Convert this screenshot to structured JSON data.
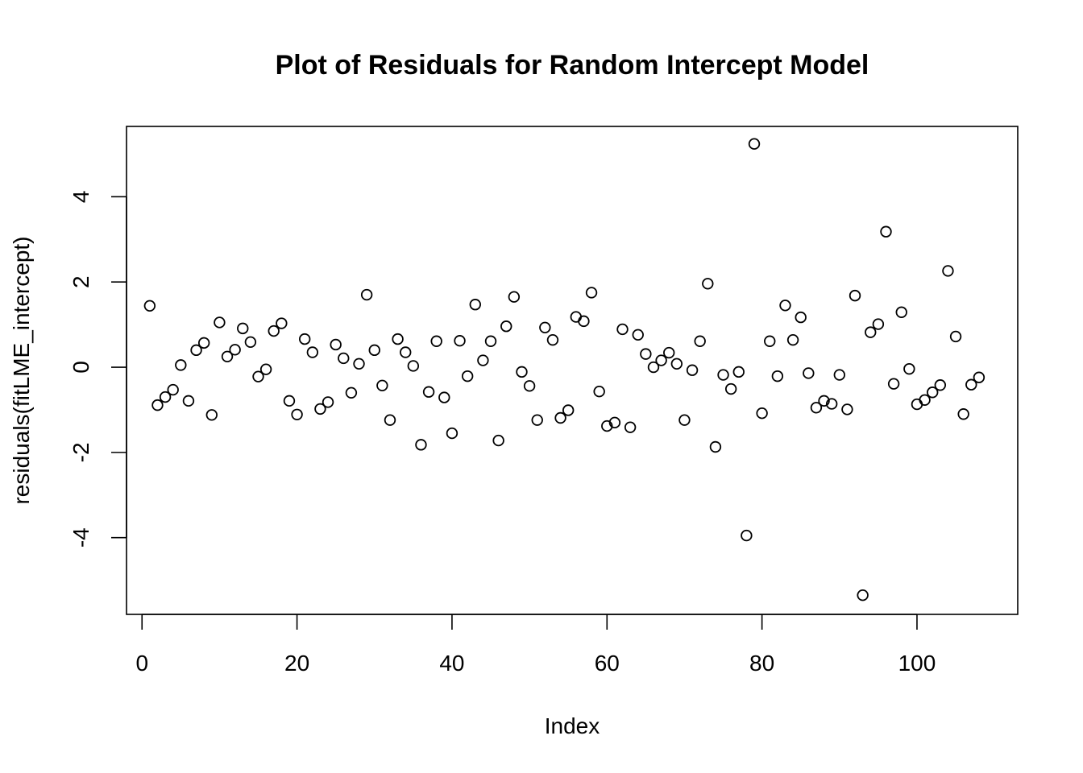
{
  "chart_data": {
    "type": "scatter",
    "title": "Plot of Residuals for Random Intercept Model",
    "xlabel": "Index",
    "ylabel": "residuals(fitLME_intercept)",
    "xlim": [
      -2,
      113
    ],
    "ylim": [
      -5.8,
      5.65
    ],
    "xticks": [
      0,
      20,
      40,
      60,
      80,
      100
    ],
    "yticks": [
      -4,
      -2,
      0,
      2,
      4
    ],
    "grid": false,
    "legend": "none",
    "marker": "open-circle",
    "color": "#000000",
    "x": [
      1,
      2,
      3,
      4,
      5,
      6,
      7,
      8,
      9,
      10,
      11,
      12,
      13,
      14,
      15,
      16,
      17,
      18,
      19,
      20,
      21,
      22,
      23,
      24,
      25,
      26,
      27,
      28,
      29,
      30,
      31,
      32,
      33,
      34,
      35,
      36,
      37,
      38,
      39,
      40,
      41,
      42,
      43,
      44,
      45,
      46,
      47,
      48,
      49,
      50,
      51,
      52,
      53,
      54,
      55,
      56,
      57,
      58,
      59,
      60,
      61,
      62,
      63,
      64,
      65,
      66,
      67,
      68,
      69,
      70,
      71,
      72,
      73,
      74,
      75,
      76,
      77,
      78,
      79,
      80,
      81,
      82,
      83,
      84,
      85,
      86,
      87,
      88,
      89,
      90,
      91,
      92,
      93,
      94,
      95,
      96,
      97,
      98,
      99,
      100,
      101,
      102,
      103,
      104,
      105,
      106,
      107,
      108
    ],
    "y": [
      1.44,
      -0.89,
      -0.7,
      -0.53,
      0.05,
      -0.79,
      0.4,
      0.57,
      -1.12,
      1.05,
      0.25,
      0.41,
      0.91,
      0.59,
      -0.22,
      -0.05,
      0.85,
      1.03,
      -0.79,
      -1.11,
      0.66,
      0.35,
      -0.98,
      -0.82,
      0.53,
      0.21,
      -0.6,
      0.08,
      1.7,
      0.4,
      -0.43,
      -1.24,
      0.66,
      0.35,
      0.03,
      -1.82,
      -0.58,
      0.61,
      -0.71,
      -1.55,
      0.62,
      -0.21,
      1.47,
      0.16,
      0.61,
      -1.72,
      0.96,
      1.65,
      -0.11,
      -0.44,
      -1.24,
      0.93,
      0.64,
      -1.19,
      -1.01,
      1.18,
      1.08,
      1.75,
      -0.57,
      -1.38,
      -1.3,
      0.89,
      -1.41,
      0.76,
      0.31,
      0.0,
      0.16,
      0.34,
      0.08,
      -1.24,
      -0.07,
      0.61,
      1.96,
      -1.87,
      -0.18,
      -0.51,
      -0.11,
      -3.95,
      5.24,
      -1.08,
      0.61,
      -0.21,
      1.45,
      0.64,
      1.17,
      -0.14,
      -0.95,
      -0.79,
      -0.86,
      -0.18,
      -0.99,
      1.68,
      -5.35,
      0.82,
      1.01,
      3.18,
      -0.39,
      1.29,
      -0.04,
      -0.87,
      -0.77,
      -0.59,
      -0.42,
      2.26,
      0.72,
      -1.1,
      -0.41,
      -0.24
    ]
  }
}
